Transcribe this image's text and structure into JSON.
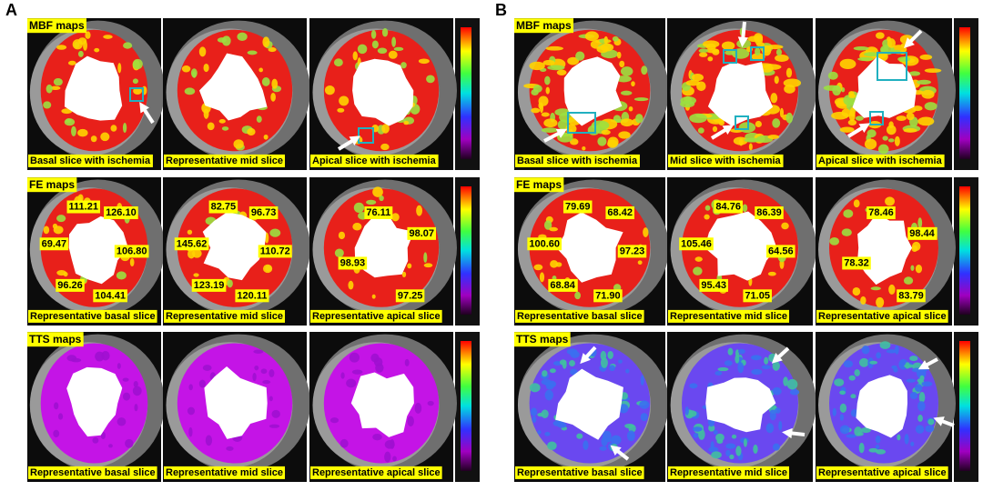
{
  "panels": [
    {
      "label": "A",
      "rows": [
        {
          "title": "MBF maps",
          "slices": [
            {
              "caption": "Basal slice with ischemia"
            },
            {
              "caption": "Representative mid slice"
            },
            {
              "caption": "Apical slice with ischemia"
            }
          ]
        },
        {
          "title": "FE maps",
          "slices": [
            {
              "caption": "Representative basal slice",
              "values": [
                "111.21",
                "126.10",
                "69.47",
                "106.80",
                "96.26",
                "104.41"
              ]
            },
            {
              "caption": "Representative mid slice",
              "values": [
                "82.75",
                "96.73",
                "145.62",
                "110.72",
                "123.19",
                "120.11"
              ]
            },
            {
              "caption": "Representative apical slice",
              "values": [
                "76.11",
                "98.07",
                "98.93",
                "97.25"
              ]
            }
          ]
        },
        {
          "title": "TTS maps",
          "slices": [
            {
              "caption": "Representative basal slice"
            },
            {
              "caption": "Representative mid slice"
            },
            {
              "caption": "Representative apical slice"
            }
          ]
        }
      ]
    },
    {
      "label": "B",
      "rows": [
        {
          "title": "MBF maps",
          "slices": [
            {
              "caption": "Basal slice with ischemia"
            },
            {
              "caption": "Mid slice with ischemia"
            },
            {
              "caption": "Apical slice with ischemia"
            }
          ]
        },
        {
          "title": "FE maps",
          "slices": [
            {
              "caption": "Representative basal slice",
              "values": [
                "79.69",
                "68.42",
                "100.60",
                "97.23",
                "68.84",
                "71.90"
              ]
            },
            {
              "caption": "Representative mid slice",
              "values": [
                "84.76",
                "86.39",
                "105.46",
                "64.56",
                "95.43",
                "71.05"
              ]
            },
            {
              "caption": "Representative apical slice",
              "values": [
                "78.46",
                "98.44",
                "78.32",
                "83.79"
              ]
            }
          ]
        },
        {
          "title": "TTS maps",
          "slices": [
            {
              "caption": "Representative basal slice"
            },
            {
              "caption": "Representative mid slice"
            },
            {
              "caption": "Representative apical slice"
            }
          ]
        }
      ]
    }
  ]
}
